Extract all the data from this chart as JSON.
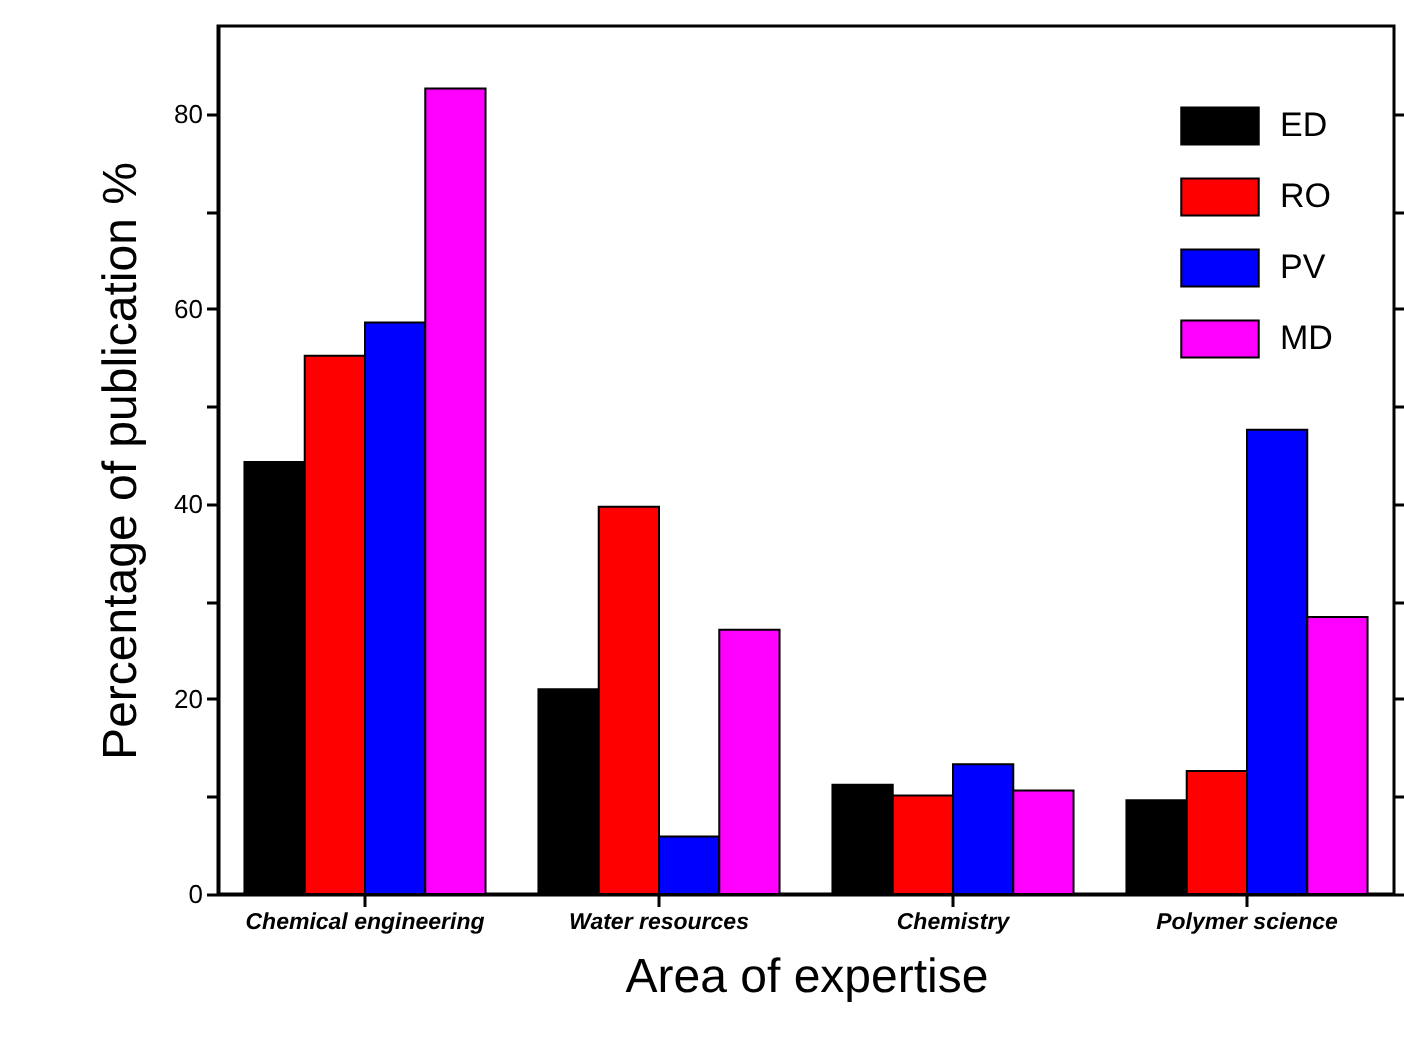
{
  "chart_data": {
    "type": "bar",
    "xlabel": "Area of expertise",
    "ylabel": "Percentage of publication %",
    "categories": [
      "Chemical engineering",
      "Water resources",
      "Chemistry",
      "Polymer science"
    ],
    "series": [
      {
        "name": "ED",
        "color": "#000000",
        "values": [
          44.3,
          21,
          11.2,
          9.6
        ]
      },
      {
        "name": "RO",
        "color": "#ff0000",
        "values": [
          55.2,
          39.7,
          10.1,
          12.6
        ]
      },
      {
        "name": "PV",
        "color": "#0000ff",
        "values": [
          58.6,
          5.9,
          13.3,
          47.6
        ]
      },
      {
        "name": "MD",
        "color": "#ff00ff",
        "values": [
          82.6,
          27.1,
          10.6,
          28.4
        ]
      }
    ],
    "ylim": [
      0,
      89
    ],
    "yticks": [
      0,
      {
        "value": 10,
        "label": null
      },
      20,
      {
        "value": 30,
        "label": null
      },
      40,
      {
        "value": 50,
        "label": null
      },
      60,
      {
        "value": 70,
        "label": null
      },
      80
    ],
    "grid": false,
    "legend": "top right"
  }
}
